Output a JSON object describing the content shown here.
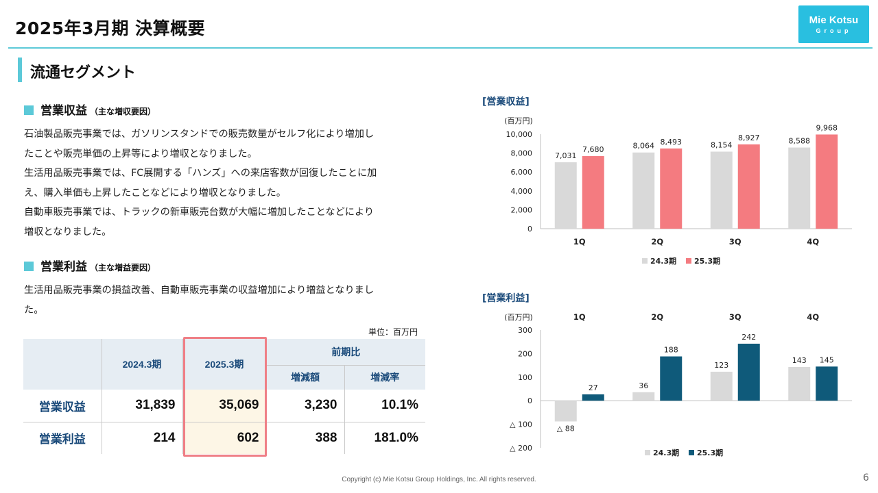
{
  "header": {
    "title": "2025年3月期 決算概要",
    "logo_main": "Mie Kotsu",
    "logo_sub": "Group"
  },
  "section": {
    "title": "流通セグメント"
  },
  "revenue_block": {
    "heading": "営業収益",
    "note": "（主な増収要因）",
    "lines": [
      "石油製品販売事業では、ガソリンスタンドでの販売数量がセルフ化により増加し",
      "たことや販売単価の上昇等により増収となりました。",
      "生活用品販売事業では、FC展開する「ハンズ」への来店客数が回復したことに加",
      "え、購入単価も上昇したことなどにより増収となりました。",
      "自動車販売事業では、トラックの新車販売台数が大幅に増加したことなどにより",
      "増収となりました。"
    ]
  },
  "profit_block": {
    "heading": "営業利益",
    "note": "（主な増益要因）",
    "lines": [
      "生活用品販売事業の損益改善、自動車販売事業の収益増加により増益となりまし",
      "た。"
    ]
  },
  "table": {
    "unit": "単位：百万円",
    "col_fy2024": "2024.3期",
    "col_fy2025": "2025.3期",
    "col_yoy": "前期比",
    "col_change": "増減額",
    "col_rate": "増減率",
    "rows": [
      {
        "label": "営業収益",
        "fy2024": "31,839",
        "fy2025": "35,069",
        "change": "3,230",
        "rate": "10.1%"
      },
      {
        "label": "営業利益",
        "fy2024": "214",
        "fy2025": "602",
        "change": "388",
        "rate": "181.0%"
      }
    ]
  },
  "colors": {
    "prev": "#d9d9d9",
    "revenue_curr": "#f47b80",
    "profit_curr": "#0f5a7a",
    "accent": "#5cc9d8"
  },
  "chart_data": [
    {
      "type": "bar",
      "title": "[営業収益]",
      "unit_label": "(百万円)",
      "categories": [
        "1Q",
        "2Q",
        "3Q",
        "4Q"
      ],
      "series": [
        {
          "name": "24.3期",
          "values": [
            7031,
            8064,
            8154,
            8588
          ],
          "labels": [
            "7,031",
            "8,064",
            "8,154",
            "8,588"
          ]
        },
        {
          "name": "25.3期",
          "values": [
            7680,
            8493,
            8927,
            9968
          ],
          "labels": [
            "7,680",
            "8,493",
            "8,927",
            "9,968"
          ]
        }
      ],
      "ylim": [
        0,
        10000
      ],
      "yticks": [
        0,
        2000,
        4000,
        6000,
        8000,
        10000
      ],
      "ytick_labels": [
        "0",
        "2,000",
        "4,000",
        "6,000",
        "8,000",
        "10,000"
      ],
      "legend": "bottom"
    },
    {
      "type": "bar",
      "title": "[営業利益]",
      "unit_label": "(百万円)",
      "categories": [
        "1Q",
        "2Q",
        "3Q",
        "4Q"
      ],
      "series": [
        {
          "name": "24.3期",
          "values": [
            -88,
            36,
            123,
            143
          ],
          "labels": [
            "△ 88",
            "36",
            "123",
            "143"
          ]
        },
        {
          "name": "25.3期",
          "values": [
            27,
            188,
            242,
            145
          ],
          "labels": [
            "27",
            "188",
            "242",
            "145"
          ]
        }
      ],
      "ylim": [
        -200,
        300
      ],
      "yticks": [
        300,
        200,
        100,
        0,
        -100,
        -200
      ],
      "ytick_labels": [
        "300",
        "200",
        "100",
        "0",
        "△ 100",
        "△ 200"
      ],
      "category_position": "top",
      "legend": "bottom"
    }
  ],
  "footer": {
    "copyright": "Copyright (c) Mie Kotsu Group Holdings, Inc. All rights reserved.",
    "page": "6"
  }
}
